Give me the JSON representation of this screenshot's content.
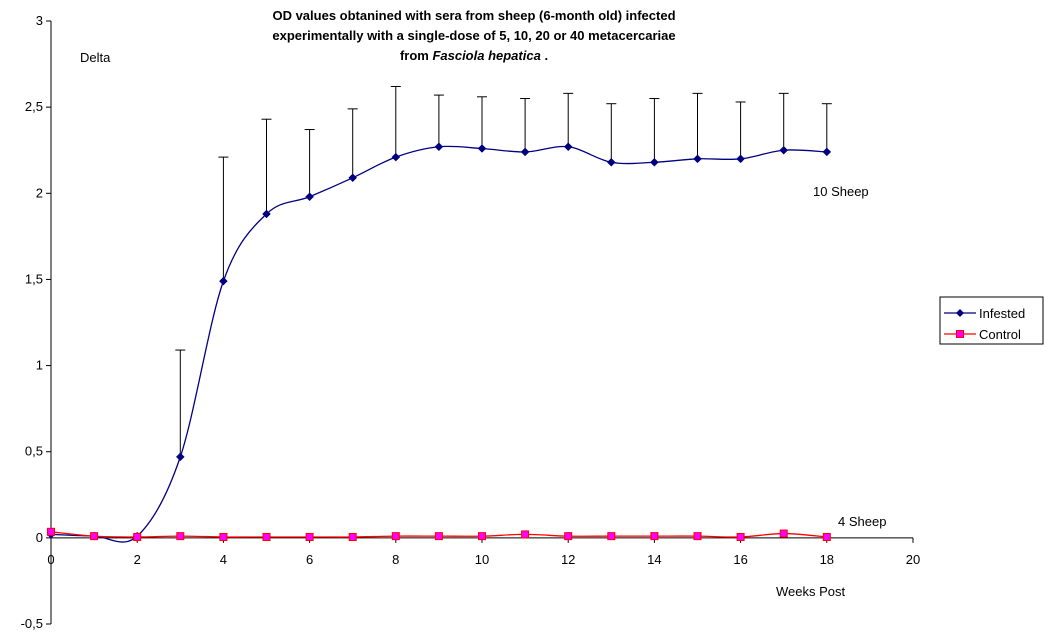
{
  "chart_data": {
    "type": "line",
    "title": {
      "line1": "OD values obtanined with sera from sheep (6-month old) infected",
      "line2": "experimentally with a single-dose of 5, 10, 20 or 40 metacercariae",
      "line3_prefix": "from ",
      "line3_italic": "Fasciola hepatica",
      "line3_suffix": " ."
    },
    "ylabel": "Delta",
    "xlabel": "Weeks Post",
    "xlim": [
      0,
      20
    ],
    "ylim": [
      -0.5,
      3
    ],
    "xticks": [
      "0",
      "2",
      "4",
      "6",
      "8",
      "10",
      "12",
      "14",
      "16",
      "18",
      "20"
    ],
    "yticks": [
      "-0,5",
      "0",
      "0,5",
      "1",
      "1,5",
      "2",
      "2,5",
      "3"
    ],
    "annotations": {
      "infested_group": "10 Sheep",
      "control_group": "4 Sheep"
    },
    "legend_position": "right",
    "series": [
      {
        "name": "Infested",
        "color": "#000080",
        "marker": "diamond",
        "x": [
          0,
          1,
          2,
          3,
          4,
          5,
          6,
          7,
          8,
          9,
          10,
          11,
          12,
          13,
          14,
          15,
          16,
          17,
          18
        ],
        "y": [
          0.02,
          0.01,
          0.01,
          0.47,
          1.49,
          1.88,
          1.98,
          2.09,
          2.21,
          2.27,
          2.26,
          2.24,
          2.27,
          2.18,
          2.18,
          2.2,
          2.2,
          2.25,
          2.24
        ],
        "error_upper": [
          null,
          null,
          null,
          1.09,
          2.21,
          2.43,
          2.37,
          2.49,
          2.62,
          2.57,
          2.56,
          2.55,
          2.58,
          2.52,
          2.55,
          2.58,
          2.53,
          2.58,
          2.52
        ]
      },
      {
        "name": "Control",
        "color": "#FF0000",
        "marker_fill": "#FF00FF",
        "marker": "square",
        "x": [
          0,
          1,
          2,
          3,
          4,
          5,
          6,
          7,
          8,
          9,
          10,
          11,
          12,
          13,
          14,
          15,
          16,
          17,
          18
        ],
        "y": [
          0.035,
          0.01,
          0.005,
          0.01,
          0.005,
          0.005,
          0.005,
          0.005,
          0.01,
          0.01,
          0.01,
          0.02,
          0.01,
          0.01,
          0.01,
          0.01,
          0.005,
          0.025,
          0.005
        ]
      }
    ]
  }
}
